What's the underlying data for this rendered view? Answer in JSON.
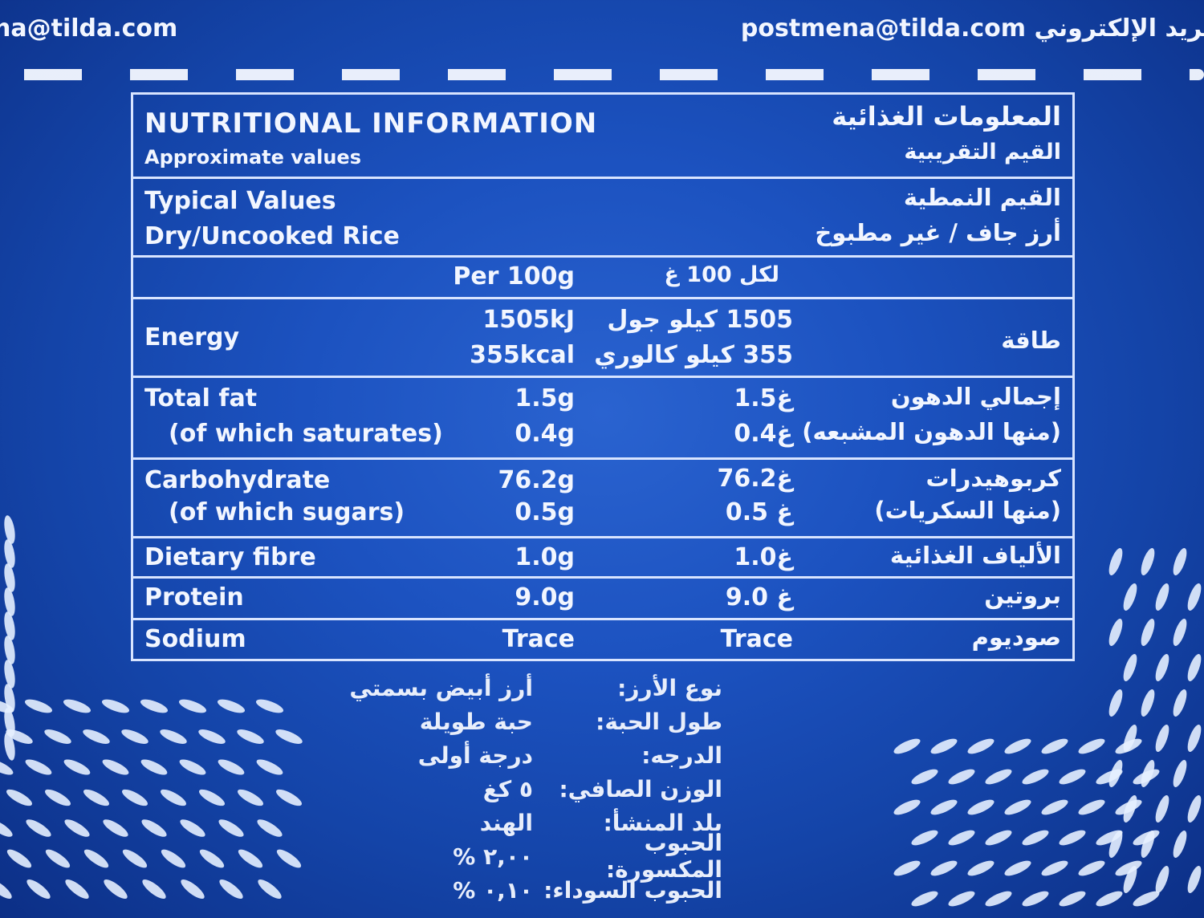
{
  "header": {
    "email_left": "na@tilda.com",
    "email_right": "postmena@tilda.com",
    "email_right_ar": "بريد الإلكتروني"
  },
  "table": {
    "title": "NUTRITIONAL INFORMATION",
    "subtitle": "Approximate values",
    "title_ar": "المعلومات الغذائية",
    "subtitle_ar": "القيم التقريبية",
    "typical": "Typical Values",
    "dry": "Dry/Uncooked Rice",
    "typical_ar": "القيم النمطية",
    "dry_ar": "أرز جاف / غير مطبوخ",
    "per": "Per 100g",
    "per_ar": "لكل 100 غ",
    "energy": {
      "label": "Energy",
      "kj": "1505kJ",
      "kcal": "355kcal",
      "kj_ar": "1505 كيلو جول",
      "kcal_ar": "355 كيلو كالوري",
      "label_ar": "طاقة"
    },
    "fat": {
      "label": "Total fat",
      "sub": "(of which saturates)",
      "v": "1.5g",
      "sv": "0.4g",
      "v_ar": "1.5غ",
      "sv_ar": "0.4غ",
      "label_ar": "إجمالي الدهون",
      "sub_ar": "(منها الدهون المشبعه)"
    },
    "carb": {
      "label": "Carbohydrate",
      "sub": "(of which sugars)",
      "v": "76.2g",
      "sv": "0.5g",
      "v_ar": "76.2غ",
      "sv_ar": "0.5 غ",
      "label_ar": "كربوهيدرات",
      "sub_ar": "(منها السكريات)"
    },
    "fibre": {
      "label": "Dietary fibre",
      "v": "1.0g",
      "v_ar": "1.0غ",
      "label_ar": "الألياف الغذائية"
    },
    "protein": {
      "label": "Protein",
      "v": "9.0g",
      "v_ar": "9.0 غ",
      "label_ar": "بروتين"
    },
    "sodium": {
      "label": "Sodium",
      "v": "Trace",
      "v_ar": "Trace",
      "label_ar": "صوديوم"
    }
  },
  "details": [
    {
      "label": "نوع الأرز:",
      "value": "أرز أبيض بسمتي"
    },
    {
      "label": "طول الحبة:",
      "value": "حبة طويلة"
    },
    {
      "label": "الدرجه:",
      "value": "درجة أولى"
    },
    {
      "label": "الوزن الصافي:",
      "value": "٥ كغ"
    },
    {
      "label": "بلد المنشأ:",
      "value": "الهند"
    },
    {
      "label": "الحبوب المكسورة:",
      "value": "٢,٠٠ %"
    },
    {
      "label": "الحبوب السوداء:",
      "value": "٠,١٠ %"
    }
  ]
}
